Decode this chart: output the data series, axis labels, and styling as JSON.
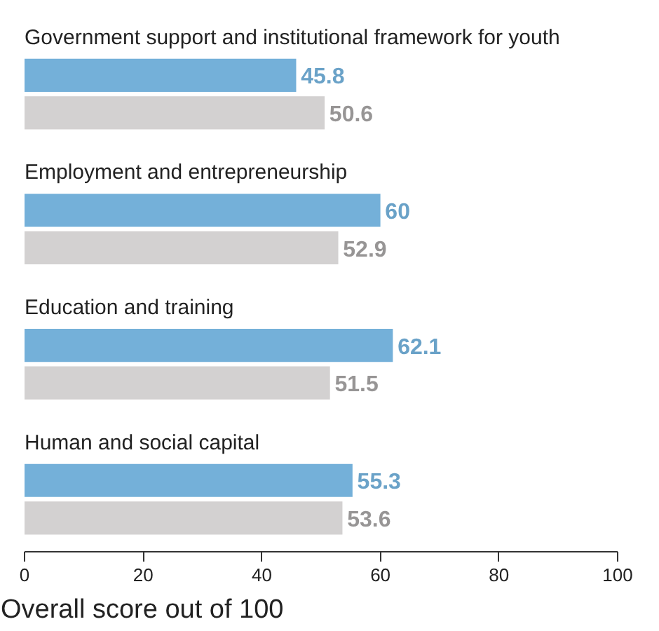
{
  "chart_data": {
    "type": "bar",
    "orientation": "horizontal",
    "xlabel": "Overall score out of 100",
    "categories": [
      "Government support and institutional framework for youth",
      "Employment and entrepreneurship",
      "Education and training",
      "Human and social capital"
    ],
    "series": [
      {
        "color": "#74b0d9",
        "values": [
          45.8,
          60,
          62.1,
          55.3
        ]
      },
      {
        "color": "#d3d1d1",
        "values": [
          50.6,
          52.9,
          51.5,
          53.6
        ]
      }
    ],
    "xlim": [
      0,
      100
    ],
    "xticks": [
      0,
      20,
      40,
      60,
      80,
      100
    ],
    "data_labels": true,
    "grid": false
  }
}
